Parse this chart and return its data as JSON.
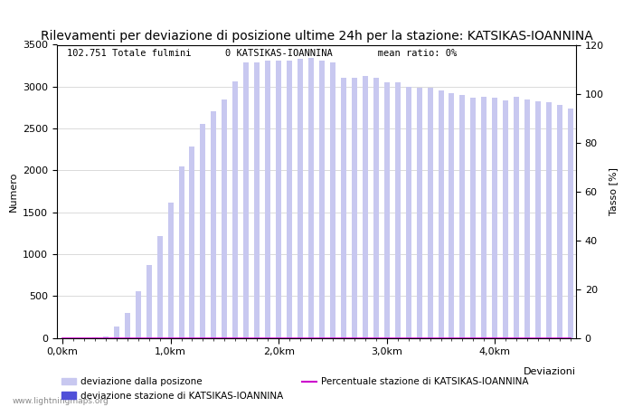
{
  "title": "Rilevamenti per deviazione di posizione ultime 24h per la stazione: KATSIKAS-IOANNINA",
  "ylabel_left": "Numero",
  "ylabel_right": "Tasso [%]",
  "subtitle": "102.751 Totale fulmini      0 KATSIKAS-IOANNINA        mean ratio: 0%",
  "bar_values": [
    0,
    0,
    0,
    5,
    15,
    130,
    300,
    560,
    870,
    1220,
    1610,
    2050,
    2280,
    2560,
    2710,
    2850,
    3060,
    3290,
    3290,
    3310,
    3310,
    3310,
    3330,
    3340,
    3310,
    3290,
    3110,
    3110,
    3130,
    3110,
    3050,
    3050,
    3000,
    2990,
    2990,
    2950,
    2920,
    2900,
    2870,
    2880,
    2870,
    2840,
    2880,
    2850,
    2820,
    2810,
    2780,
    2740
  ],
  "station_bar_values": [
    0,
    0,
    0,
    0,
    0,
    0,
    0,
    0,
    0,
    0,
    0,
    0,
    0,
    0,
    0,
    0,
    0,
    0,
    0,
    0,
    0,
    0,
    0,
    0,
    0,
    0,
    0,
    0,
    0,
    0,
    0,
    0,
    0,
    0,
    0,
    0,
    0,
    0,
    0,
    0,
    0,
    0,
    0,
    0,
    0,
    0,
    0,
    0
  ],
  "ratio_values": [
    0,
    0,
    0,
    0,
    0,
    0,
    0,
    0,
    0,
    0,
    0,
    0,
    0,
    0,
    0,
    0,
    0,
    0,
    0,
    0,
    0,
    0,
    0,
    0,
    0,
    0,
    0,
    0,
    0,
    0,
    0,
    0,
    0,
    0,
    0,
    0,
    0,
    0,
    0,
    0,
    0,
    0,
    0,
    0,
    0,
    0,
    0,
    0
  ],
  "bar_color_light": "#c8c8f0",
  "bar_color_dark": "#5050d8",
  "line_color": "#cc00cc",
  "ylim_left": [
    0,
    3500
  ],
  "ylim_right": [
    0,
    120
  ],
  "yticks_left": [
    0,
    500,
    1000,
    1500,
    2000,
    2500,
    3000,
    3500
  ],
  "yticks_right": [
    0,
    20,
    40,
    60,
    80,
    100,
    120
  ],
  "x_tick_positions": [
    0,
    10,
    20,
    30,
    40
  ],
  "x_tick_labels": [
    "0,0km",
    "1,0km",
    "2,0km",
    "3,0km",
    "4,0km"
  ],
  "xlabel_label": "Deviazioni",
  "legend_label_light": "deviazione dalla posizone",
  "legend_label_dark": "deviazione stazione di KATSIKAS-IOANNINA",
  "legend_label_line": "Percentuale stazione di KATSIKAS-IOANNINA",
  "watermark": "www.lightningmaps.org",
  "background_color": "#ffffff",
  "grid_color": "#cccccc",
  "title_fontsize": 10,
  "axis_fontsize": 8,
  "subtitle_fontsize": 7.5,
  "bar_width": 0.5
}
